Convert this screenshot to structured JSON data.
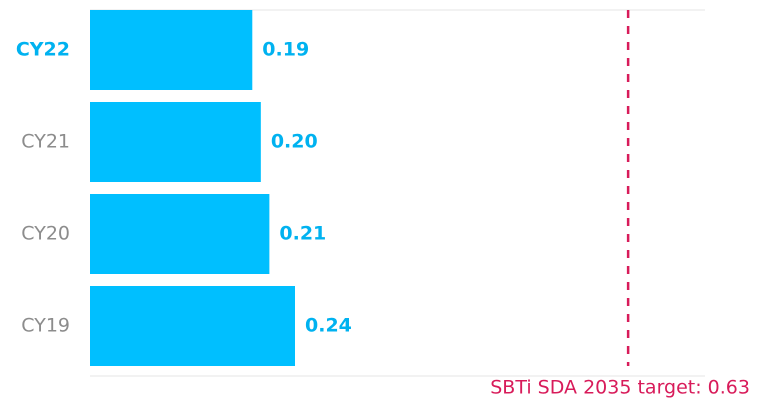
{
  "chart_data": {
    "type": "bar",
    "orientation": "horizontal",
    "categories": [
      "CY22",
      "CY21",
      "CY20",
      "CY19"
    ],
    "values": [
      0.19,
      0.2,
      0.21,
      0.24
    ],
    "value_labels": [
      "0.19",
      "0.20",
      "0.21",
      "0.24"
    ],
    "color": "#00bfff",
    "highlight_index": 0,
    "xlim": [
      0,
      0.72
    ],
    "target": {
      "value": 0.63,
      "label": "SBTi SDA 2035 target: 0.63",
      "color": "#d81b5a"
    }
  }
}
